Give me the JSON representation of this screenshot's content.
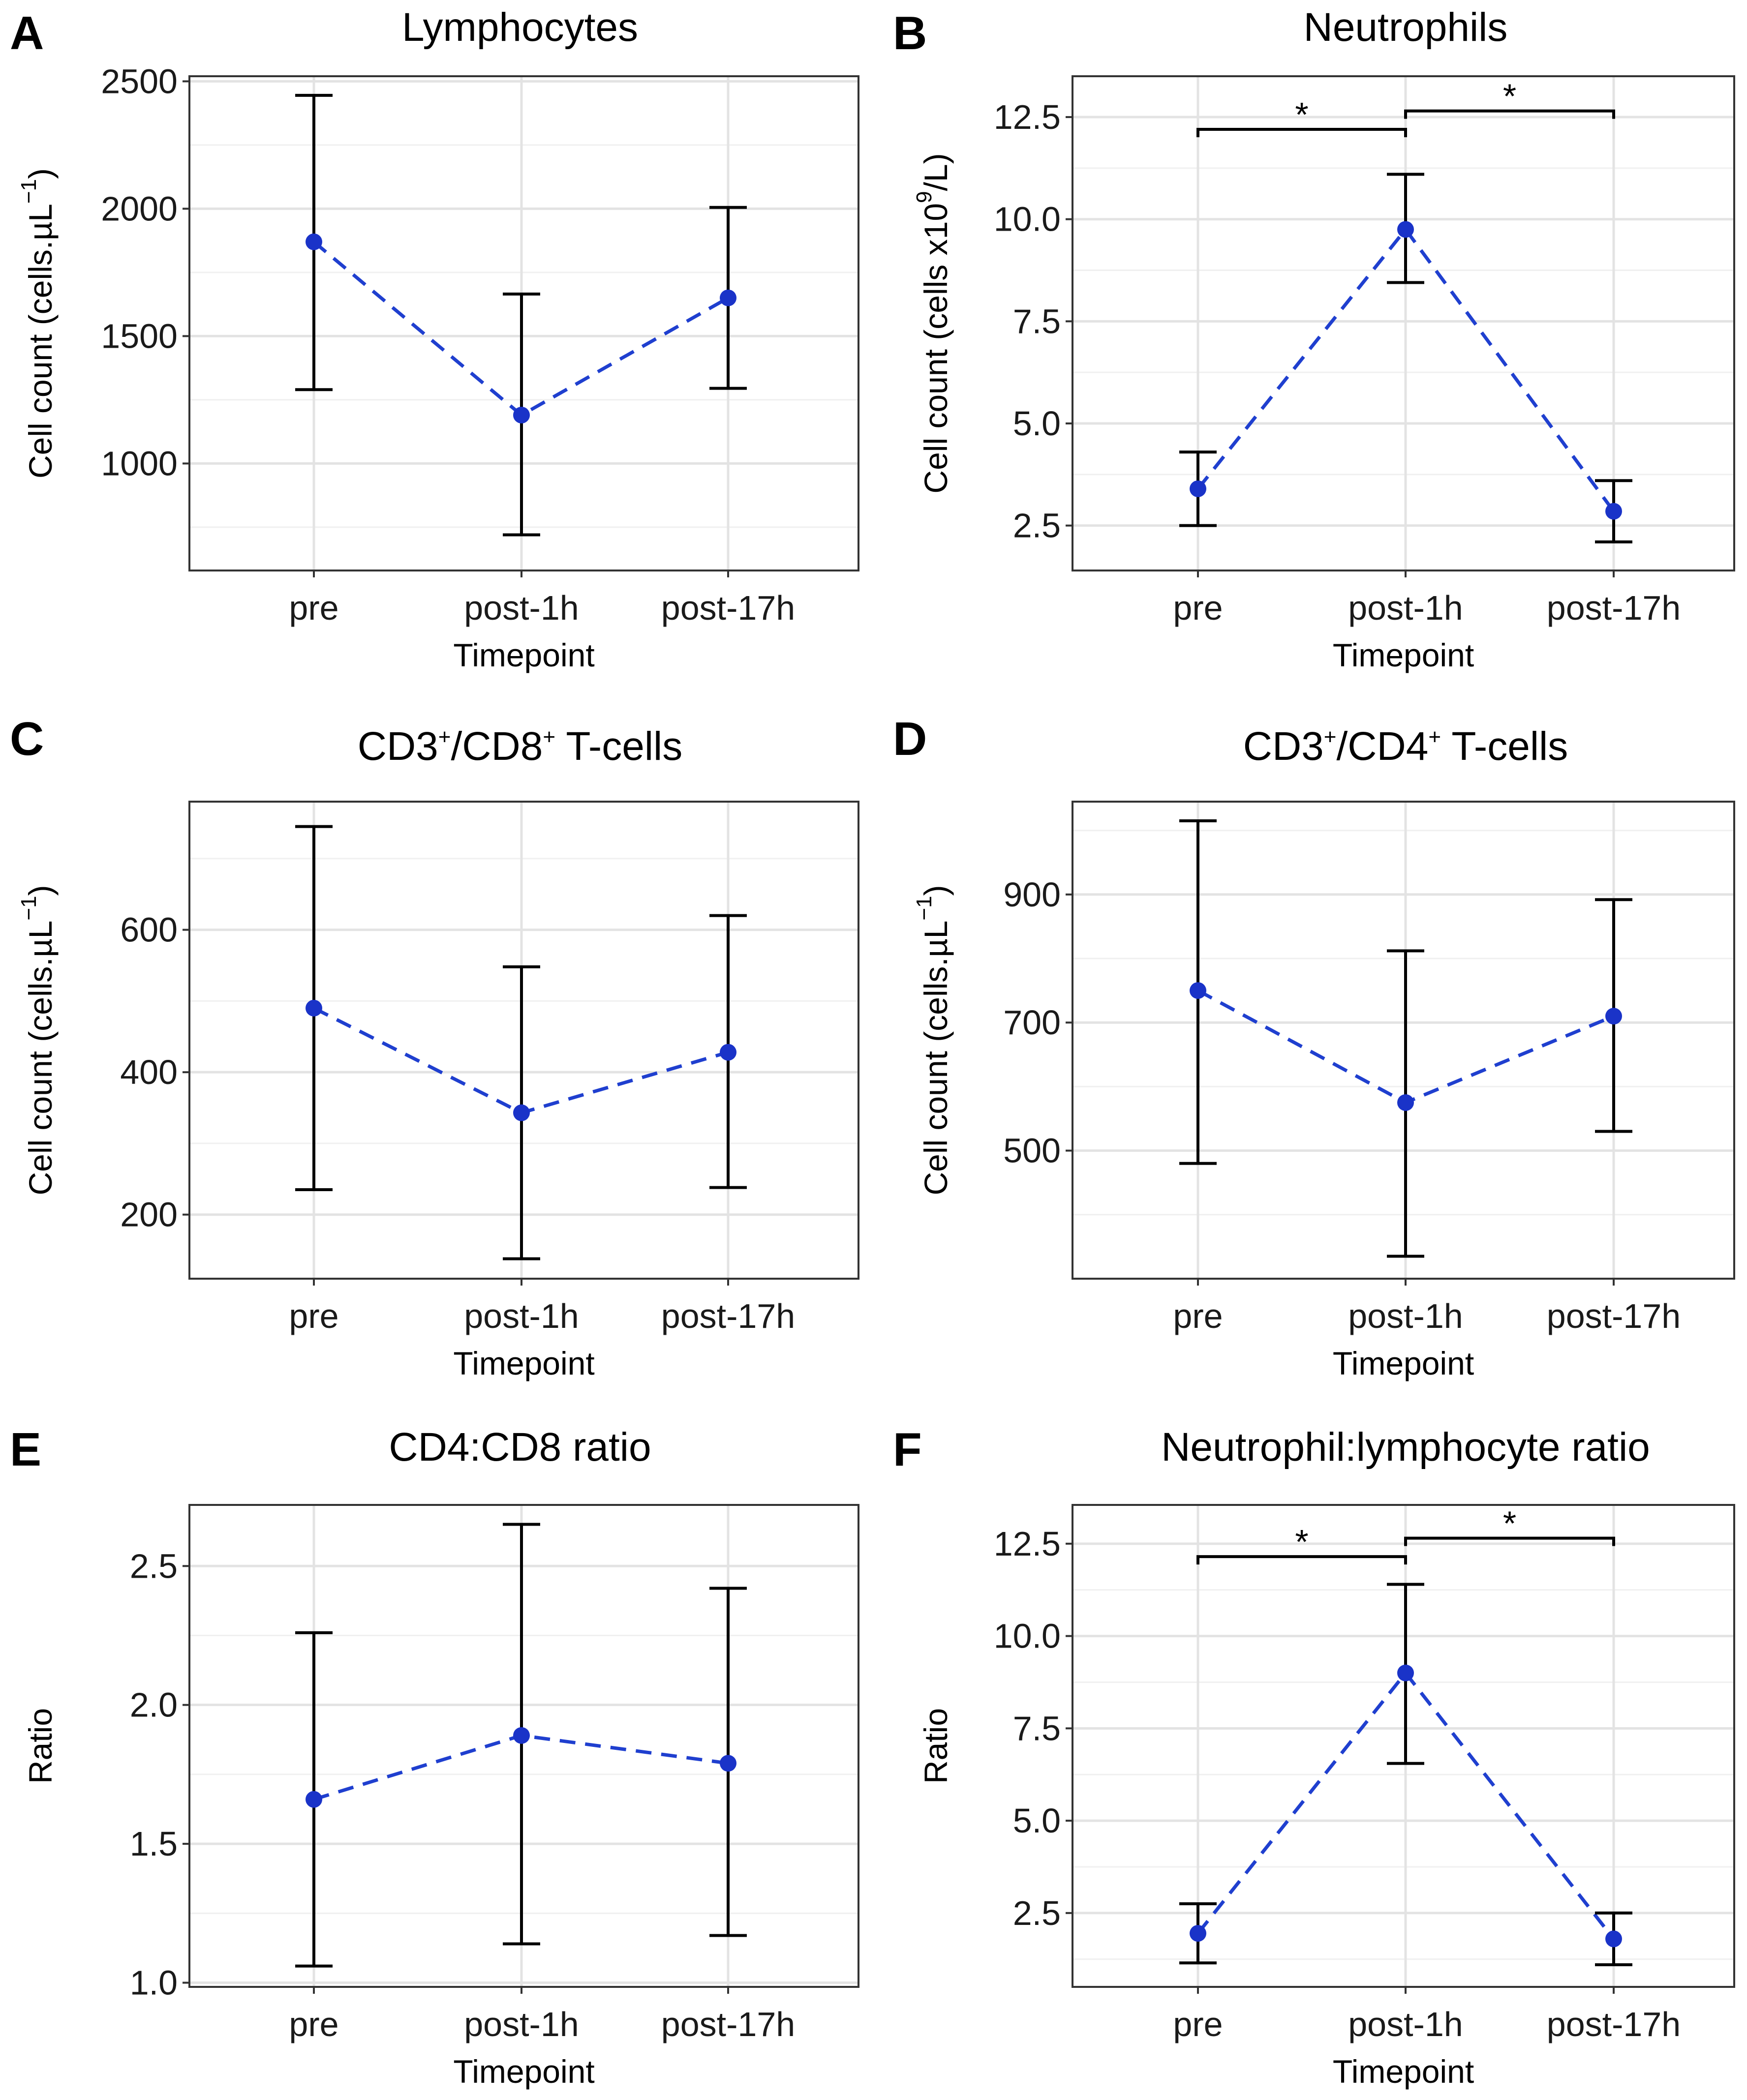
{
  "chart_data": [
    {
      "panel": "A",
      "type": "line",
      "title": "Lymphocytes",
      "xlabel": "Timepoint",
      "ylabel": "Cell count (cells.µL⁻¹)",
      "categories": [
        "pre",
        "post-1h",
        "post-17h"
      ],
      "values": [
        1870,
        1190,
        1650
      ],
      "err_low": [
        1290,
        720,
        1295
      ],
      "err_high": [
        2445,
        1665,
        2005
      ],
      "ylim": [
        580,
        2520
      ],
      "yticks": [
        1000,
        1500,
        2000,
        2500
      ],
      "minor": 250,
      "significance": []
    },
    {
      "panel": "B",
      "type": "line",
      "title": "Neutrophils",
      "xlabel": "Timepoint",
      "ylabel": "Cell count (cells x10⁹/L)",
      "categories": [
        "pre",
        "post-1h",
        "post-17h"
      ],
      "values": [
        3.4,
        9.75,
        2.85
      ],
      "err_low": [
        2.5,
        8.45,
        2.1
      ],
      "err_high": [
        4.3,
        11.1,
        3.6
      ],
      "ylim": [
        1.4,
        13.5
      ],
      "yticks": [
        "2.5",
        "5.0",
        "7.5",
        "10.0",
        "12.5"
      ],
      "minor": 1.25,
      "significance": [
        {
          "from": 0,
          "to": 1,
          "y": 12.2,
          "label": "*"
        },
        {
          "from": 1,
          "to": 2,
          "y": 12.65,
          "label": "*"
        }
      ]
    },
    {
      "panel": "C",
      "type": "line",
      "title": "CD3⁺/CD8⁺ T-cells",
      "xlabel": "Timepoint",
      "ylabel": "Cell count (cells.µL⁻¹)",
      "categories": [
        "pre",
        "post-1h",
        "post-17h"
      ],
      "values": [
        490,
        343,
        428
      ],
      "err_low": [
        235,
        138,
        238
      ],
      "err_high": [
        745,
        548,
        620
      ],
      "ylim": [
        110,
        780
      ],
      "yticks": [
        200,
        400,
        600
      ],
      "minor": 100,
      "significance": []
    },
    {
      "panel": "D",
      "type": "line",
      "title": "CD3⁺/CD4⁺ T-cells",
      "xlabel": "Timepoint",
      "ylabel": "Cell count (cells.µL⁻¹)",
      "categories": [
        "pre",
        "post-1h",
        "post-17h"
      ],
      "values": [
        750,
        575,
        710
      ],
      "err_low": [
        480,
        335,
        530
      ],
      "err_high": [
        1015,
        812,
        892
      ],
      "ylim": [
        300,
        1045
      ],
      "yticks": [
        500,
        700,
        900
      ],
      "minor": 100,
      "significance": []
    },
    {
      "panel": "E",
      "type": "line",
      "title": "CD4:CD8 ratio",
      "xlabel": "Timepoint",
      "ylabel": "Ratio",
      "categories": [
        "pre",
        "post-1h",
        "post-17h"
      ],
      "values": [
        1.66,
        1.89,
        1.79
      ],
      "err_low": [
        1.06,
        1.14,
        1.17
      ],
      "err_high": [
        2.26,
        2.65,
        2.42
      ],
      "ylim": [
        0.985,
        2.72
      ],
      "yticks": [
        "1.0",
        "1.5",
        "2.0",
        "2.5"
      ],
      "minor": 0.25,
      "significance": []
    },
    {
      "panel": "F",
      "type": "line",
      "title": "Neutrophil:lymphocyte ratio",
      "xlabel": "Timepoint",
      "ylabel": "Ratio",
      "categories": [
        "pre",
        "post-1h",
        "post-17h"
      ],
      "values": [
        1.95,
        9.0,
        1.8
      ],
      "err_low": [
        1.15,
        6.55,
        1.1
      ],
      "err_high": [
        2.75,
        11.4,
        2.5
      ],
      "ylim": [
        0.5,
        13.55
      ],
      "yticks": [
        "2.5",
        "5.0",
        "7.5",
        "10.0",
        "12.5"
      ],
      "minor": 1.25,
      "significance": [
        {
          "from": 0,
          "to": 1,
          "y": 12.15,
          "label": "*"
        },
        {
          "from": 1,
          "to": 2,
          "y": 12.65,
          "label": "*"
        }
      ]
    }
  ],
  "colors": {
    "line": "#1f3fcf",
    "point": "#1a33c8",
    "errorbar": "#000000",
    "grid_major": "#e3e3e3",
    "grid_minor": "#f0f0f0",
    "axis": "#333333"
  }
}
